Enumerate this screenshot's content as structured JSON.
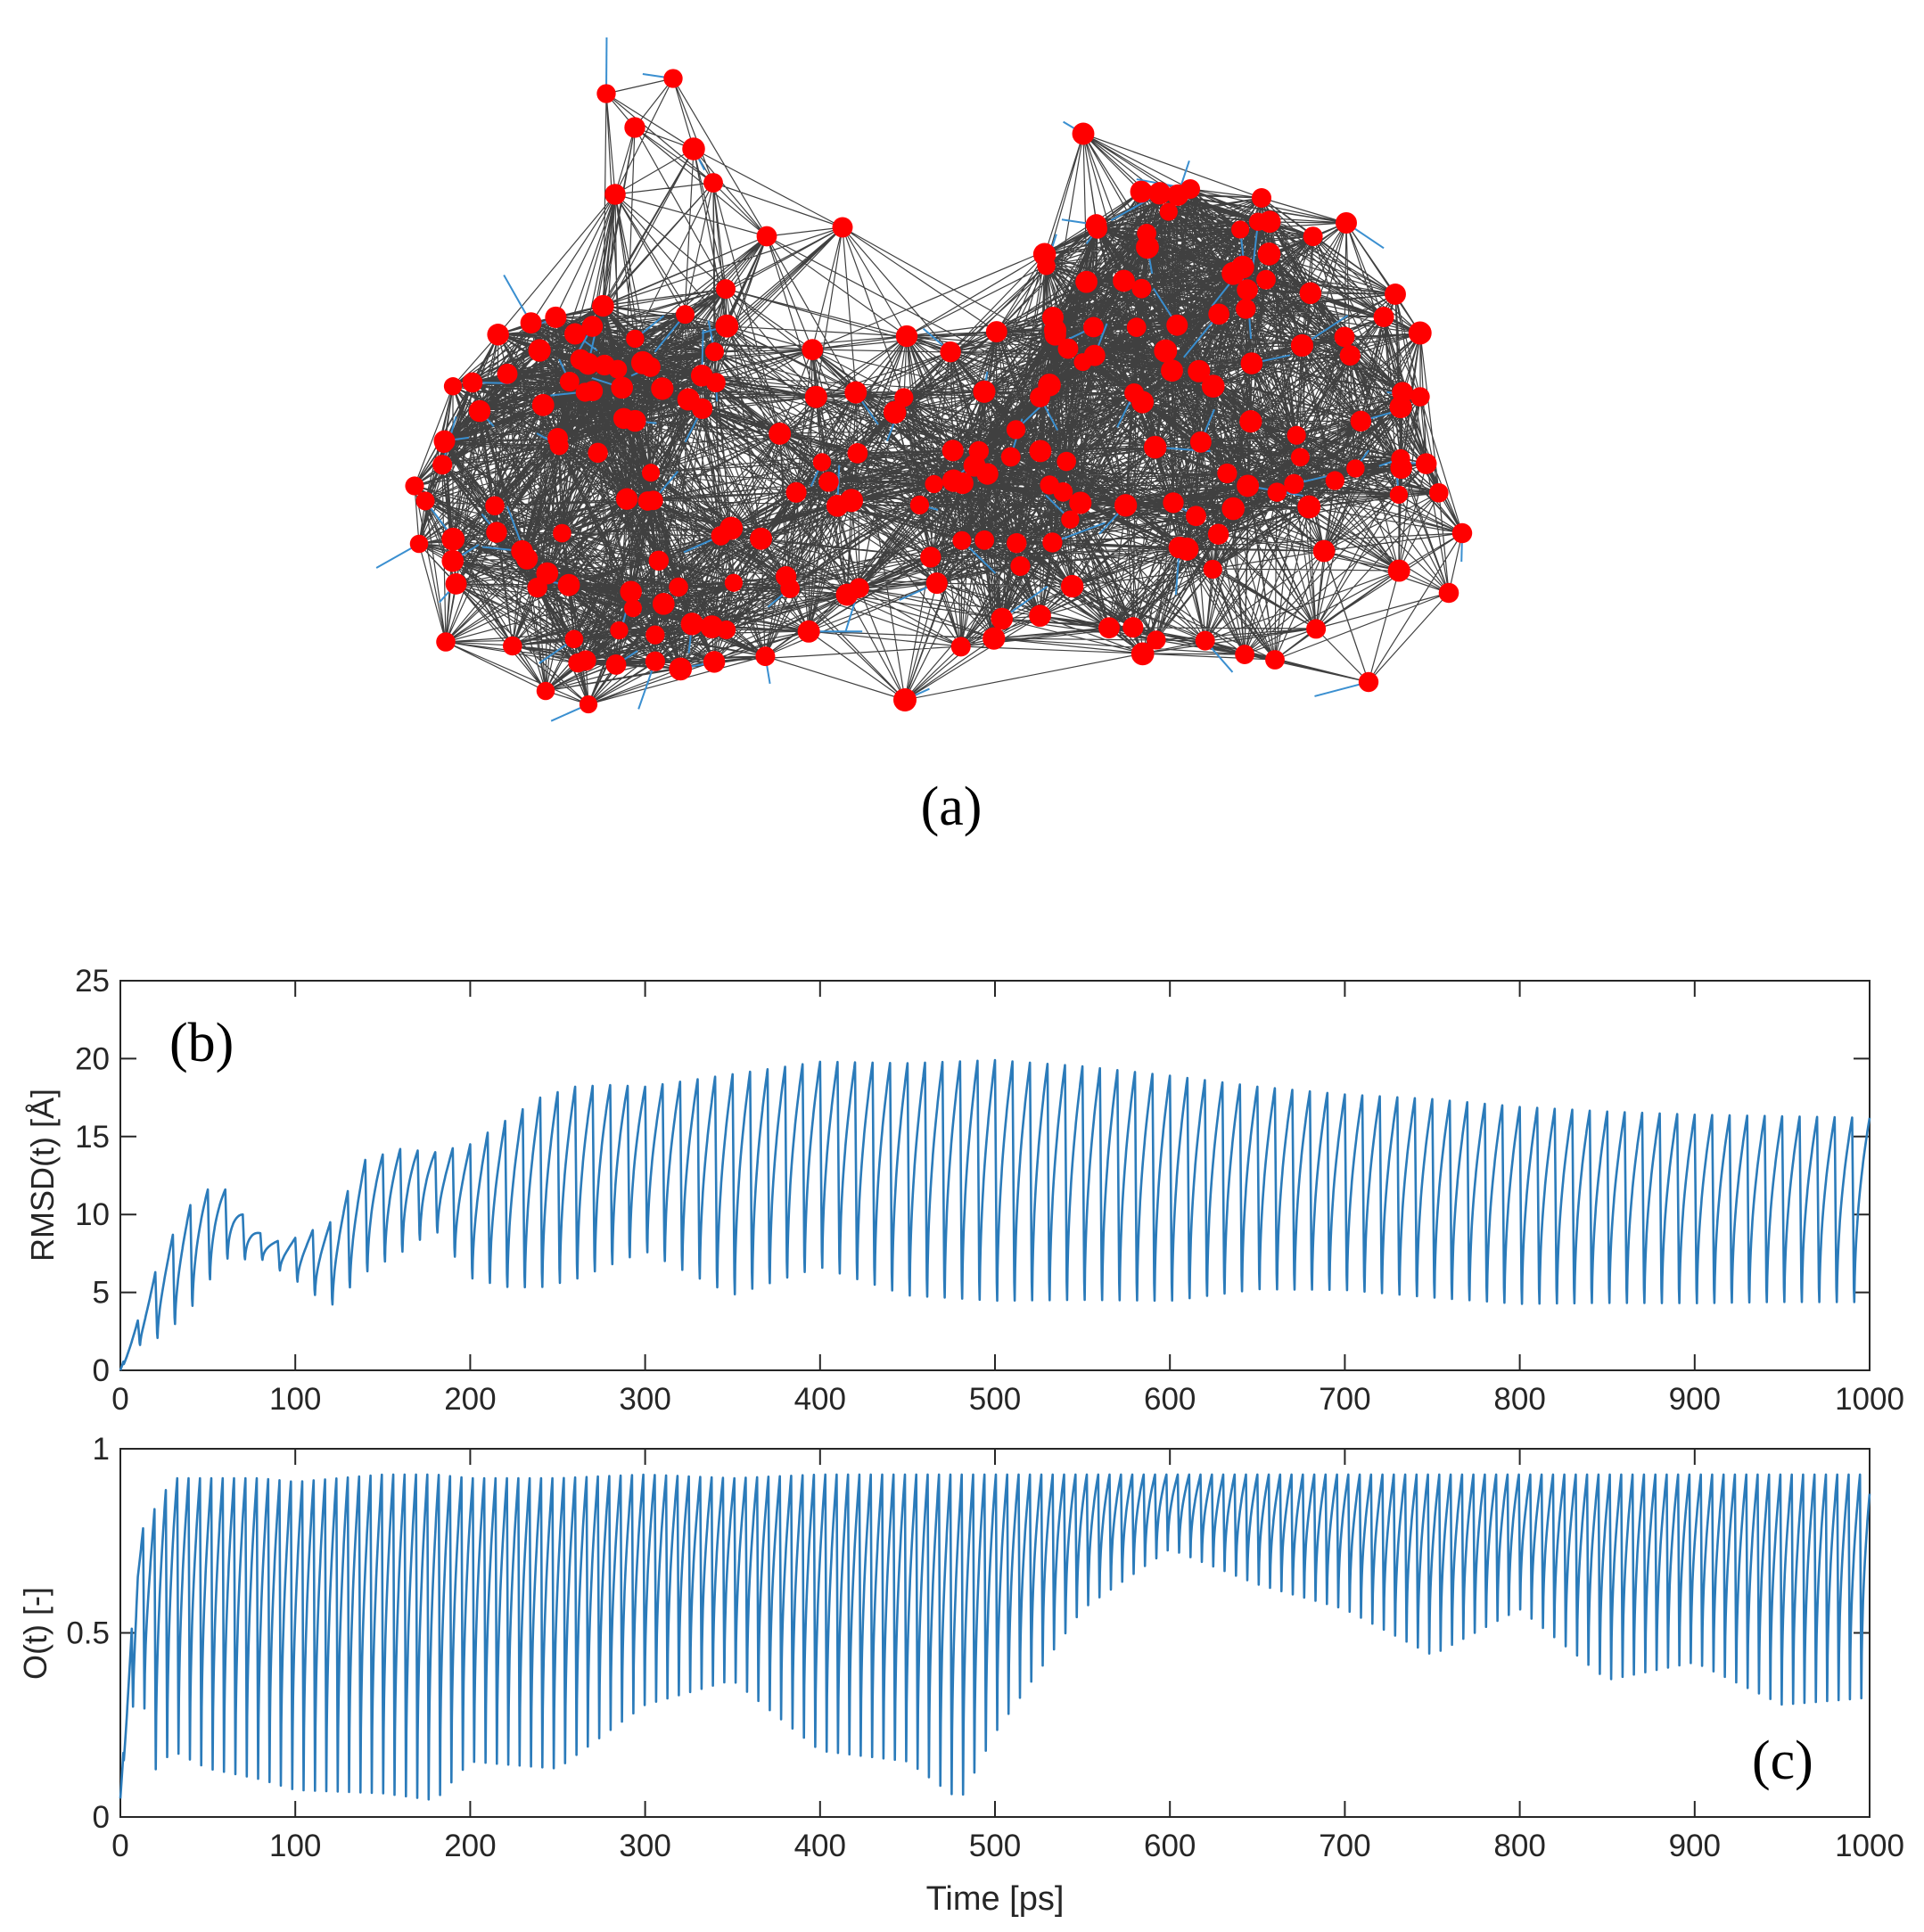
{
  "panels": {
    "a_label": "(a)",
    "b_label": "(b)",
    "c_label": "(c)"
  },
  "network": {
    "node_color": "#ff0000",
    "edge_color": "#000000",
    "arrow_color": "#3a8fd0"
  },
  "chart_data": [
    {
      "type": "line",
      "title": "",
      "xlabel": "",
      "ylabel": "RMSD(t) [Å]",
      "xlim": [
        0,
        1000
      ],
      "ylim": [
        0,
        25
      ],
      "xticks": [
        0,
        100,
        200,
        300,
        400,
        500,
        600,
        700,
        800,
        900,
        1000
      ],
      "xtick_labels": [
        "0",
        "100",
        "200",
        "300",
        "400",
        "500",
        "600",
        "700",
        "800",
        "900",
        "1000"
      ],
      "yticks": [
        0,
        5,
        10,
        15,
        20,
        25
      ],
      "ytick_labels": [
        "0",
        "5",
        "10",
        "15",
        "20",
        "25"
      ],
      "grid": false,
      "color": "#2b7bba",
      "series": [
        {
          "period_ps": 10,
          "x": [
            0,
            10,
            20,
            30,
            40,
            50,
            60,
            70,
            80,
            90,
            100,
            120,
            140,
            160,
            180,
            200,
            220,
            240,
            260,
            280,
            300,
            350,
            400,
            450,
            500,
            550,
            600,
            650,
            700,
            750,
            800,
            850,
            900,
            950,
            1000
          ],
          "y_max": [
            0,
            3.2,
            6.3,
            8.7,
            10.6,
            11.6,
            11.6,
            10.0,
            8.8,
            8.3,
            8.5,
            9.5,
            13.5,
            14.2,
            14.0,
            14.5,
            16.0,
            17.5,
            18.2,
            18.3,
            18.2,
            19.0,
            19.8,
            19.7,
            19.9,
            19.5,
            18.9,
            18.2,
            17.7,
            17.4,
            16.9,
            16.6,
            16.4,
            16.3,
            16.2
          ],
          "y_min": [
            0,
            1.4,
            1.5,
            2.2,
            3.2,
            5.0,
            6.7,
            6.8,
            7.0,
            6.3,
            5.5,
            3.5,
            5.5,
            6.8,
            8.5,
            5.0,
            4.2,
            4.0,
            4.5,
            5.5,
            6.5,
            3.3,
            5.2,
            3.2,
            2.8,
            2.9,
            2.9,
            3.8,
            3.8,
            3.3,
            2.9,
            3.0,
            3.0,
            3.1,
            3.1
          ]
        }
      ]
    },
    {
      "type": "line",
      "title": "",
      "xlabel": "Time [ps]",
      "ylabel": "O(t) [-]",
      "xlim": [
        0,
        1000
      ],
      "ylim": [
        0,
        1
      ],
      "xticks": [
        0,
        100,
        200,
        300,
        400,
        500,
        600,
        700,
        800,
        900,
        1000
      ],
      "xtick_labels": [
        "0",
        "100",
        "200",
        "300",
        "400",
        "500",
        "600",
        "700",
        "800",
        "900",
        "1000"
      ],
      "yticks": [
        0,
        0.5,
        1
      ],
      "ytick_labels": [
        "0",
        "0.5",
        "1"
      ],
      "grid": false,
      "color": "#2b7bba",
      "series": [
        {
          "period_ps": 6.5,
          "x": [
            0,
            10,
            20,
            30,
            50,
            80,
            100,
            150,
            180,
            200,
            250,
            300,
            350,
            400,
            450,
            480,
            500,
            550,
            600,
            650,
            700,
            750,
            800,
            850,
            900,
            950,
            1000
          ],
          "y_max": [
            0.05,
            0.76,
            0.84,
            0.92,
            0.92,
            0.92,
            0.91,
            0.93,
            0.93,
            0.92,
            0.92,
            0.93,
            0.92,
            0.93,
            0.93,
            0.93,
            0.93,
            0.93,
            0.93,
            0.93,
            0.93,
            0.93,
            0.93,
            0.93,
            0.93,
            0.93,
            0.93
          ],
          "y_min": [
            0.05,
            0.38,
            0.1,
            0.15,
            0.1,
            0.07,
            0.04,
            0.03,
            0.01,
            0.12,
            0.1,
            0.28,
            0.35,
            0.15,
            0.12,
            0.01,
            0.2,
            0.55,
            0.72,
            0.62,
            0.55,
            0.42,
            0.55,
            0.35,
            0.4,
            0.28,
            0.3
          ]
        }
      ]
    }
  ]
}
